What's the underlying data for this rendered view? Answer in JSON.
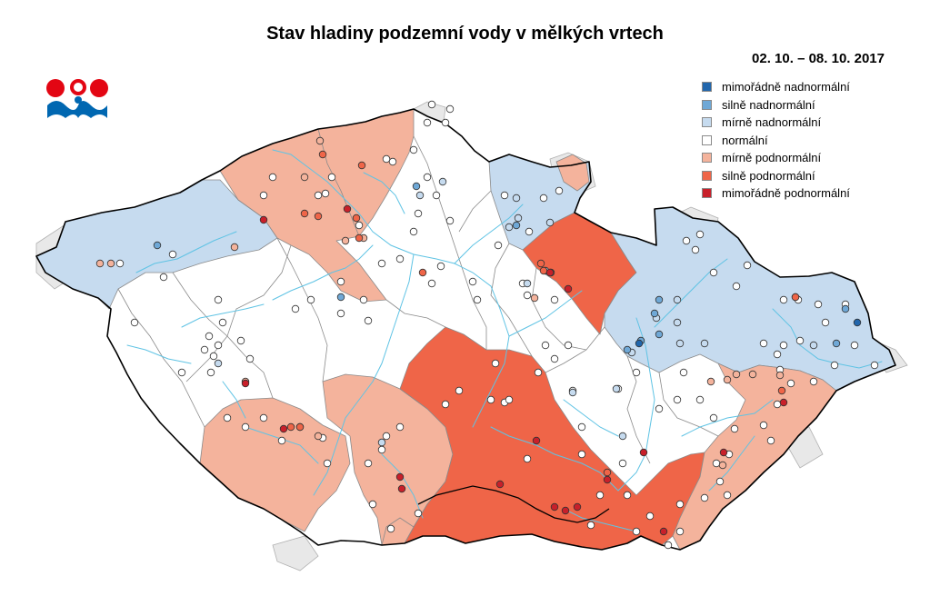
{
  "title": "Stav hladiny podzemní vody v mělkých vrtech",
  "date_range": "02. 10. – 08. 10. 2017",
  "legend": [
    {
      "label": "mimořádně nadnormální",
      "color": "#2166ac"
    },
    {
      "label": "silně nadnormální",
      "color": "#6fa8d6"
    },
    {
      "label": "mírně nadnormální",
      "color": "#c6dbef"
    },
    {
      "label": "normální",
      "color": "#ffffff"
    },
    {
      "label": "mírně podnormální",
      "color": "#f4b39c"
    },
    {
      "label": "silně podnormální",
      "color": "#ef6548"
    },
    {
      "label": "mimořádně podnormální",
      "color": "#c8202a"
    }
  ],
  "colors": {
    "country_border": "#000000",
    "river": "#5fc3e4",
    "basin_border": "#8a8a8a",
    "neighbor_land": "#e8e8e8"
  },
  "logo": {
    "icon": "chmi-logo-icon",
    "colors": [
      "#e30613",
      "#0067b1"
    ]
  }
}
